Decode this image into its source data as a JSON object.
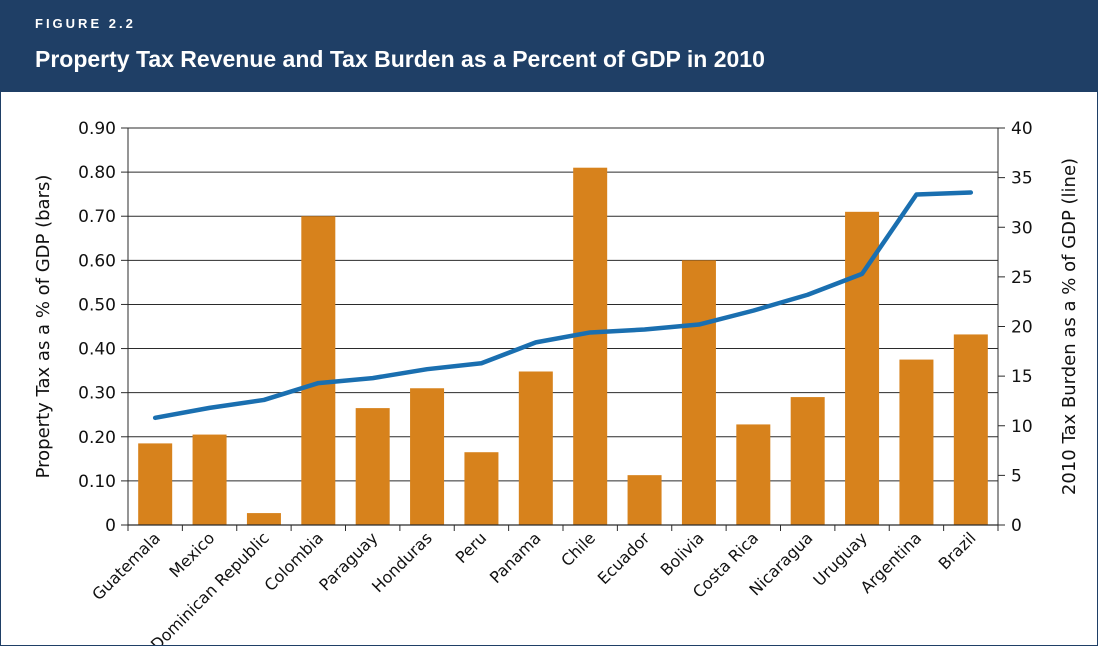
{
  "figure": {
    "label": "FIGURE 2.2",
    "title": "Property Tax Revenue and Tax Burden as a Percent of GDP in 2010"
  },
  "colors": {
    "banner": "#1f3f66",
    "bar": "#d7821c",
    "line": "#1a6fb0"
  },
  "chart_data": {
    "type": "bar",
    "combo": "bar+line (dual axis)",
    "title": "Property Tax Revenue and Tax Burden as a Percent of GDP in 2010",
    "categories": [
      "Guatemala",
      "Mexico",
      "Dominican Republic",
      "Colombia",
      "Paraguay",
      "Honduras",
      "Peru",
      "Panama",
      "Chile",
      "Ecuador",
      "Bolivia",
      "Costa Rica",
      "Nicaragua",
      "Uruguay",
      "Argentina",
      "Brazil"
    ],
    "series": [
      {
        "type": "bar",
        "axis": "left",
        "values": [
          0.185,
          0.205,
          0.027,
          0.7,
          0.265,
          0.31,
          0.165,
          0.348,
          0.81,
          0.113,
          0.6,
          0.228,
          0.29,
          0.71,
          0.375,
          0.432
        ]
      },
      {
        "type": "line",
        "axis": "right",
        "values": [
          10.8,
          11.8,
          12.6,
          14.3,
          14.8,
          15.7,
          16.3,
          18.4,
          19.4,
          19.7,
          20.2,
          21.6,
          23.2,
          25.3,
          33.3,
          33.5
        ]
      }
    ],
    "ylabel": "Property Tax as a % of GDP (bars)",
    "ylim": [
      0,
      0.9
    ],
    "yticks": [
      "0",
      "0.10",
      "0.20",
      "0.30",
      "0.40",
      "0.50",
      "0.60",
      "0.70",
      "0.80",
      "0.90"
    ],
    "y2label": "2010 Tax Burden as a % of GDP (line)",
    "y2lim": [
      0,
      40
    ],
    "y2ticks": [
      "0",
      "5",
      "10",
      "15",
      "20",
      "25",
      "30",
      "35",
      "40"
    ],
    "grid": true
  }
}
